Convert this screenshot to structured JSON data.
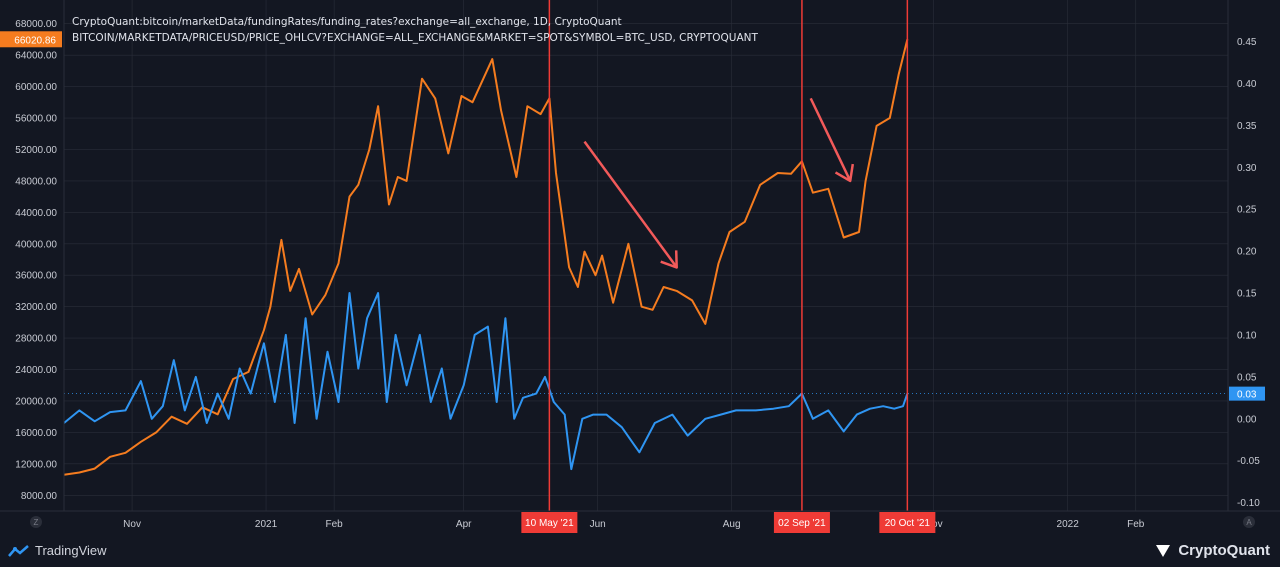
{
  "header": {
    "line1": "CryptoQuant:bitcoin/marketData/fundingRates/funding_rates?exchange=all_exchange, 1D, CryptoQuant",
    "line2": "BITCOIN/MARKETDATA/PRICEUSD/PRICE_OHLCV?EXCHANGE=ALL_EXCHANGE&MARKET=SPOT&SYMBOL=BTC_USD, CRYPTOQUANT"
  },
  "footer": {
    "tradingview_label": "TradingView",
    "cryptoquant_label": "CryptoQuant"
  },
  "axis_buttons": {
    "left": "Z",
    "right": "A"
  },
  "colors": {
    "background": "#131722",
    "price_line": "#f57c1f",
    "funding_line": "#2f95f2",
    "event_line": "#ef3b36",
    "arrow": "#f25a5a",
    "grid": "#2a2e39",
    "text": "#c8cbd3"
  },
  "chart_data": {
    "type": "line",
    "x_range": [
      "2020-10-01",
      "2022-03-15"
    ],
    "x_ticks": [
      {
        "date": "2020-11-01",
        "label": "Nov"
      },
      {
        "date": "2021-01-01",
        "label": "2021"
      },
      {
        "date": "2021-02-01",
        "label": "Feb"
      },
      {
        "date": "2021-04-01",
        "label": "Apr"
      },
      {
        "date": "2021-06-01",
        "label": "Jun"
      },
      {
        "date": "2021-08-01",
        "label": "Aug"
      },
      {
        "date": "2021-11-01",
        "label": "Nov"
      },
      {
        "date": "2022-01-01",
        "label": "2022"
      },
      {
        "date": "2022-02-01",
        "label": "Feb"
      }
    ],
    "left_axis": {
      "ylim": [
        6000,
        70000
      ],
      "ticks": [
        "8000.00",
        "12000.00",
        "16000.00",
        "20000.00",
        "24000.00",
        "28000.00",
        "32000.00",
        "36000.00",
        "40000.00",
        "44000.00",
        "48000.00",
        "52000.00",
        "56000.00",
        "60000.00",
        "64000.00",
        "68000.00"
      ]
    },
    "right_axis": {
      "ylim": [
        -0.11,
        0.49
      ],
      "ticks": [
        "-0.10",
        "-0.05",
        "0.00",
        "0.05",
        "0.10",
        "0.15",
        "0.20",
        "0.25",
        "0.30",
        "0.35",
        "0.40",
        "0.45"
      ]
    },
    "last_price_label": "66020.86",
    "last_funding_label": "0.03",
    "series": [
      {
        "axis": "left",
        "points": [
          [
            "2020-10-01",
            10600
          ],
          [
            "2020-10-08",
            10900
          ],
          [
            "2020-10-15",
            11400
          ],
          [
            "2020-10-22",
            12900
          ],
          [
            "2020-10-29",
            13400
          ],
          [
            "2020-11-05",
            14800
          ],
          [
            "2020-11-12",
            16000
          ],
          [
            "2020-11-19",
            18000
          ],
          [
            "2020-11-26",
            17100
          ],
          [
            "2020-12-03",
            19200
          ],
          [
            "2020-12-10",
            18300
          ],
          [
            "2020-12-17",
            22800
          ],
          [
            "2020-12-24",
            23700
          ],
          [
            "2020-12-31",
            29000
          ],
          [
            "2021-01-03",
            32000
          ],
          [
            "2021-01-08",
            40500
          ],
          [
            "2021-01-12",
            34000
          ],
          [
            "2021-01-16",
            36800
          ],
          [
            "2021-01-22",
            31000
          ],
          [
            "2021-01-28",
            33500
          ],
          [
            "2021-02-03",
            37500
          ],
          [
            "2021-02-08",
            46000
          ],
          [
            "2021-02-12",
            47500
          ],
          [
            "2021-02-17",
            52000
          ],
          [
            "2021-02-21",
            57500
          ],
          [
            "2021-02-26",
            45000
          ],
          [
            "2021-03-02",
            48500
          ],
          [
            "2021-03-06",
            48000
          ],
          [
            "2021-03-13",
            61000
          ],
          [
            "2021-03-19",
            58500
          ],
          [
            "2021-03-25",
            51500
          ],
          [
            "2021-03-31",
            58800
          ],
          [
            "2021-04-05",
            58000
          ],
          [
            "2021-04-14",
            63500
          ],
          [
            "2021-04-18",
            57000
          ],
          [
            "2021-04-25",
            48500
          ],
          [
            "2021-04-30",
            57500
          ],
          [
            "2021-05-06",
            56500
          ],
          [
            "2021-05-10",
            58500
          ],
          [
            "2021-05-13",
            49000
          ],
          [
            "2021-05-19",
            37000
          ],
          [
            "2021-05-23",
            34500
          ],
          [
            "2021-05-26",
            39000
          ],
          [
            "2021-05-31",
            36000
          ],
          [
            "2021-06-03",
            38500
          ],
          [
            "2021-06-08",
            32500
          ],
          [
            "2021-06-15",
            40000
          ],
          [
            "2021-06-21",
            32000
          ],
          [
            "2021-06-26",
            31600
          ],
          [
            "2021-07-01",
            34500
          ],
          [
            "2021-07-07",
            34000
          ],
          [
            "2021-07-14",
            32800
          ],
          [
            "2021-07-20",
            29800
          ],
          [
            "2021-07-26",
            37500
          ],
          [
            "2021-07-31",
            41500
          ],
          [
            "2021-08-07",
            42800
          ],
          [
            "2021-08-14",
            47500
          ],
          [
            "2021-08-22",
            49000
          ],
          [
            "2021-08-28",
            48900
          ],
          [
            "2021-09-02",
            50500
          ],
          [
            "2021-09-07",
            46500
          ],
          [
            "2021-09-14",
            47000
          ],
          [
            "2021-09-21",
            40800
          ],
          [
            "2021-09-28",
            41500
          ],
          [
            "2021-10-01",
            48000
          ],
          [
            "2021-10-06",
            55000
          ],
          [
            "2021-10-12",
            56000
          ],
          [
            "2021-10-16",
            61500
          ],
          [
            "2021-10-20",
            66020
          ]
        ]
      },
      {
        "axis": "right",
        "points": [
          [
            "2020-10-01",
            -0.005
          ],
          [
            "2020-10-08",
            0.01
          ],
          [
            "2020-10-15",
            -0.003
          ],
          [
            "2020-10-22",
            0.008
          ],
          [
            "2020-10-29",
            0.01
          ],
          [
            "2020-11-05",
            0.045
          ],
          [
            "2020-11-10",
            0.0
          ],
          [
            "2020-11-15",
            0.015
          ],
          [
            "2020-11-20",
            0.07
          ],
          [
            "2020-11-25",
            0.01
          ],
          [
            "2020-11-30",
            0.05
          ],
          [
            "2020-12-05",
            -0.005
          ],
          [
            "2020-12-10",
            0.03
          ],
          [
            "2020-12-15",
            0.0
          ],
          [
            "2020-12-20",
            0.06
          ],
          [
            "2020-12-25",
            0.03
          ],
          [
            "2020-12-31",
            0.09
          ],
          [
            "2021-01-05",
            0.02
          ],
          [
            "2021-01-10",
            0.1
          ],
          [
            "2021-01-14",
            -0.005
          ],
          [
            "2021-01-19",
            0.12
          ],
          [
            "2021-01-24",
            0.0
          ],
          [
            "2021-01-29",
            0.08
          ],
          [
            "2021-02-03",
            0.02
          ],
          [
            "2021-02-08",
            0.15
          ],
          [
            "2021-02-12",
            0.06
          ],
          [
            "2021-02-16",
            0.12
          ],
          [
            "2021-02-21",
            0.15
          ],
          [
            "2021-02-25",
            0.02
          ],
          [
            "2021-03-01",
            0.1
          ],
          [
            "2021-03-06",
            0.04
          ],
          [
            "2021-03-12",
            0.1
          ],
          [
            "2021-03-17",
            0.02
          ],
          [
            "2021-03-22",
            0.06
          ],
          [
            "2021-03-26",
            0.0
          ],
          [
            "2021-04-01",
            0.04
          ],
          [
            "2021-04-06",
            0.1
          ],
          [
            "2021-04-12",
            0.11
          ],
          [
            "2021-04-16",
            0.02
          ],
          [
            "2021-04-20",
            0.12
          ],
          [
            "2021-04-24",
            0.0
          ],
          [
            "2021-04-28",
            0.025
          ],
          [
            "2021-05-04",
            0.03
          ],
          [
            "2021-05-08",
            0.05
          ],
          [
            "2021-05-12",
            0.02
          ],
          [
            "2021-05-17",
            0.005
          ],
          [
            "2021-05-20",
            -0.06
          ],
          [
            "2021-05-25",
            0.0
          ],
          [
            "2021-05-30",
            0.005
          ],
          [
            "2021-06-05",
            0.005
          ],
          [
            "2021-06-12",
            -0.01
          ],
          [
            "2021-06-20",
            -0.04
          ],
          [
            "2021-06-27",
            -0.005
          ],
          [
            "2021-07-05",
            0.005
          ],
          [
            "2021-07-12",
            -0.02
          ],
          [
            "2021-07-20",
            0.0
          ],
          [
            "2021-07-27",
            0.005
          ],
          [
            "2021-08-03",
            0.01
          ],
          [
            "2021-08-12",
            0.01
          ],
          [
            "2021-08-20",
            0.012
          ],
          [
            "2021-08-27",
            0.015
          ],
          [
            "2021-09-02",
            0.03
          ],
          [
            "2021-09-07",
            0.0
          ],
          [
            "2021-09-14",
            0.01
          ],
          [
            "2021-09-21",
            -0.015
          ],
          [
            "2021-09-27",
            0.005
          ],
          [
            "2021-10-03",
            0.012
          ],
          [
            "2021-10-09",
            0.015
          ],
          [
            "2021-10-14",
            0.012
          ],
          [
            "2021-10-18",
            0.015
          ],
          [
            "2021-10-20",
            0.03
          ]
        ]
      }
    ],
    "event_markers": [
      {
        "date": "2021-05-10",
        "label": "10 May '21"
      },
      {
        "date": "2021-09-02",
        "label": "02 Sep '21"
      },
      {
        "date": "2021-10-20",
        "label": "20 Oct '21"
      }
    ],
    "annotations": [
      {
        "type": "arrow",
        "from": [
          "2021-05-26",
          53000
        ],
        "to": [
          "2021-07-07",
          37000
        ]
      },
      {
        "type": "arrow",
        "from": [
          "2021-09-06",
          58500
        ],
        "to": [
          "2021-09-24",
          48000
        ]
      }
    ]
  }
}
